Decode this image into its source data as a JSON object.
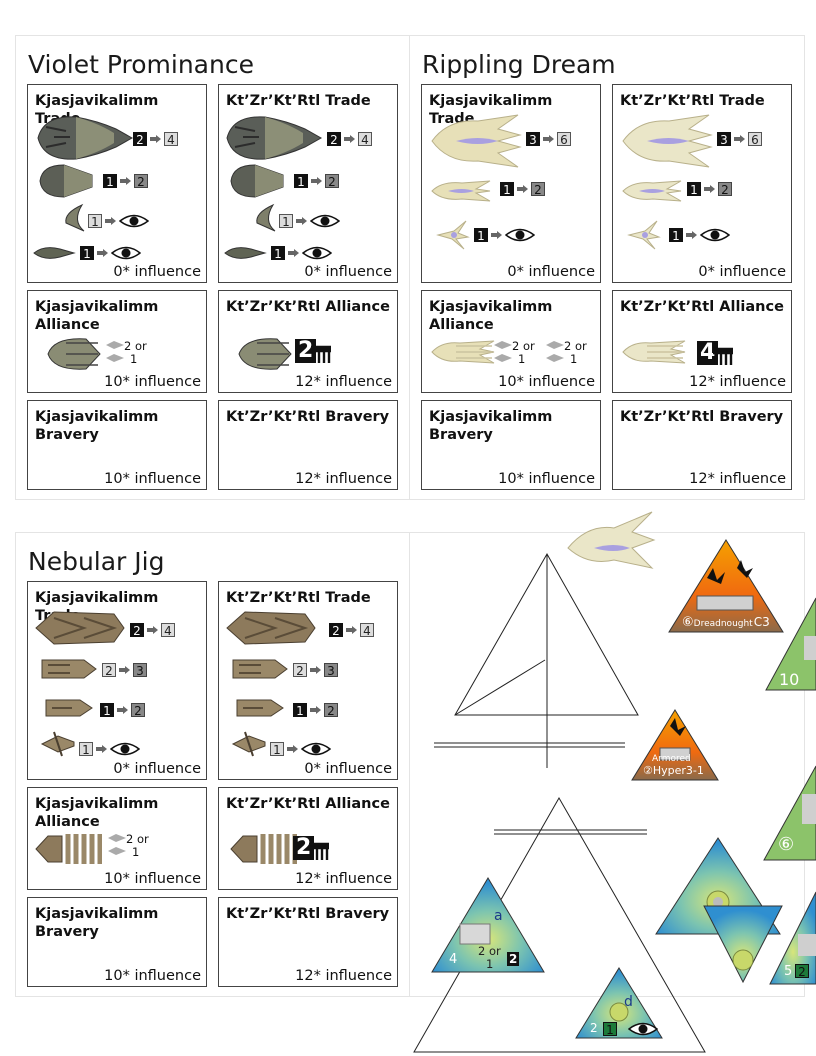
{
  "panels": [
    {
      "title": "Violet Prominance",
      "trade_left": {
        "title": "Kjasjavikalimm Trade",
        "influence": "0* influence",
        "rows": [
          "2",
          "4",
          "1",
          "2",
          "1",
          "1"
        ]
      },
      "trade_right": {
        "title": "Kt’Zr’Kt’Rtl Trade",
        "influence": "0* influence",
        "rows": [
          "2",
          "4",
          "1",
          "2",
          "1",
          "1"
        ]
      },
      "alliance_left": {
        "title": "Kjasjavikalimm Alliance",
        "influence": "10* influence",
        "opt_a": "2 or",
        "opt_b": "1"
      },
      "alliance_right": {
        "title": "Kt’Zr’Kt’Rtl Alliance",
        "influence": "12* influence",
        "num": "2"
      },
      "bravery_left": {
        "title": "Kjasjavikalimm Bravery",
        "influence": "10* influence"
      },
      "bravery_right": {
        "title": "Kt’Zr’Kt’Rtl Bravery",
        "influence": "12* influence"
      }
    },
    {
      "title": "Rippling Dream",
      "trade_left": {
        "title": "Kjasjavikalimm Trade",
        "influence": "0* influence",
        "rows": [
          "3",
          "6",
          "1",
          "2",
          "1"
        ]
      },
      "trade_right": {
        "title": "Kt’Zr’Kt’Rtl Trade",
        "influence": "0* influence",
        "rows": [
          "3",
          "6",
          "1",
          "2",
          "1"
        ]
      },
      "alliance_left": {
        "title": "Kjasjavikalimm Alliance",
        "influence": "10* influence",
        "opt_a": "2 or",
        "opt_b": "1"
      },
      "alliance_right": {
        "title": "Kt’Zr’Kt’Rtl Alliance",
        "influence": "12* influence",
        "num": "4"
      },
      "bravery_left": {
        "title": "Kjasjavikalimm Bravery",
        "influence": "10* influence"
      },
      "bravery_right": {
        "title": "Kt’Zr’Kt’Rtl Bravery",
        "influence": "12* influence"
      }
    },
    {
      "title": "Nebular Jig",
      "trade_left": {
        "title": "Kjasjavikalimm Trade",
        "influence": "0* influence",
        "rows": [
          "2",
          "4",
          "2",
          "3",
          "1",
          "2",
          "1"
        ]
      },
      "trade_right": {
        "title": "Kt’Zr’Kt’Rtl Trade",
        "influence": "0* influence",
        "rows": [
          "2",
          "4",
          "2",
          "3",
          "1",
          "2",
          "1"
        ]
      },
      "alliance_left": {
        "title": "Kjasjavikalimm Alliance",
        "influence": "10* influence",
        "opt_a": "2 or",
        "opt_b": "1"
      },
      "alliance_right": {
        "title": "Kt’Zr’Kt’Rtl Alliance",
        "influence": "12* influence",
        "num": "2"
      },
      "bravery_left": {
        "title": "Kjasjavikalimm Bravery",
        "influence": "10* influence"
      },
      "bravery_right": {
        "title": "Kt’Zr’Kt’Rtl Bravery",
        "influence": "12* influence"
      }
    }
  ],
  "tokens": {
    "dread_label": "⑤Dreadnought C3",
    "dread_circ": "⑥",
    "dread_name": "Dreadnought",
    "dread_code": "C3",
    "armored_label": "Armored",
    "armored_sub": "②Hyper3-1",
    "green_a": "10",
    "green_b": "⑥",
    "blue_a_letter": "a",
    "blue_a_num": "4",
    "blue_a_opt": "2 or",
    "blue_a_opt2": "1",
    "blue_a_big": "2",
    "blue_d_letter": "d",
    "blue_d_num": "2",
    "blue_d_box": "1",
    "edge_num": "5",
    "edge_box": "2"
  },
  "colors": {
    "dark_box": "#111111",
    "light_box": "#dddddd",
    "green_token": "#8cc36a",
    "blue_token": "#3a9ad0"
  }
}
